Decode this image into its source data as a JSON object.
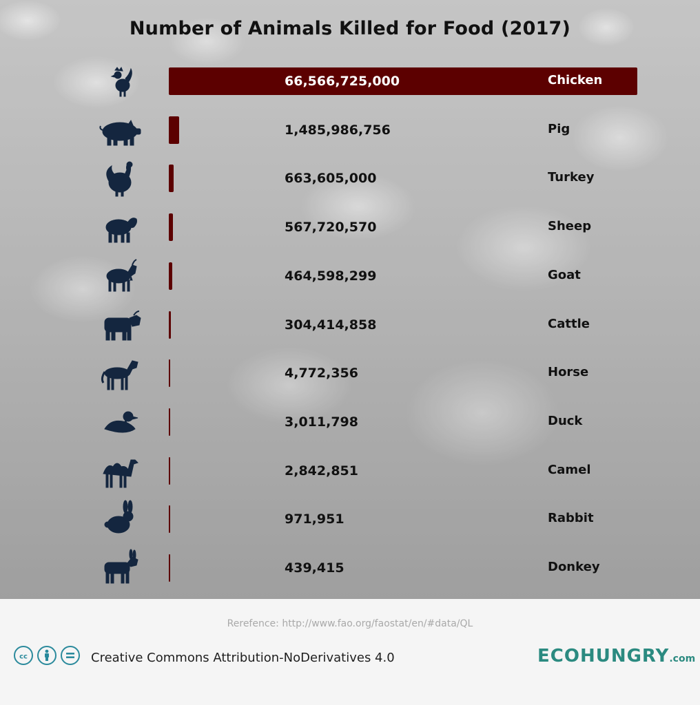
{
  "title": "Number of Animals Killed for Food (2017)",
  "chart_data": {
    "type": "bar",
    "orientation": "horizontal",
    "title": "Number of Animals Killed for Food (2017)",
    "categories": [
      "Chicken",
      "Pig",
      "Turkey",
      "Sheep",
      "Goat",
      "Cattle",
      "Horse",
      "Duck",
      "Camel",
      "Rabbit",
      "Donkey"
    ],
    "values": [
      66566725000,
      1485986756,
      663605000,
      567720570,
      464598299,
      304414858,
      4772356,
      3011798,
      2842851,
      971951,
      439415
    ],
    "value_labels": [
      "66,566,725,000",
      "1,485,986,756",
      "663,605,000",
      "567,720,570",
      "464,598,299",
      "304,414,858",
      "4,772,356",
      "3,011,798",
      "2,842,851",
      "971,951",
      "439,415"
    ],
    "icons": [
      "chicken-icon",
      "pig-icon",
      "turkey-icon",
      "sheep-icon",
      "goat-icon",
      "cattle-icon",
      "horse-icon",
      "duck-icon",
      "camel-icon",
      "rabbit-icon",
      "donkey-icon"
    ],
    "xlim": [
      0,
      66566725000
    ],
    "grid": false,
    "bar_color": "#5c0000",
    "icon_color": "#14263f",
    "first_value_color": "#ffffff"
  },
  "footer": {
    "reference": "Rerefence: http://www.fao.org/faostat/en/#data/QL",
    "license": "Creative Commons Attribution-NoDerivatives 4.0",
    "license_icons": [
      "cc-icon",
      "attribution-icon",
      "no-derivatives-icon"
    ],
    "brand": "ECOHUNGRY",
    "brand_tld": ".com",
    "brand_color": "#2b8a80"
  }
}
